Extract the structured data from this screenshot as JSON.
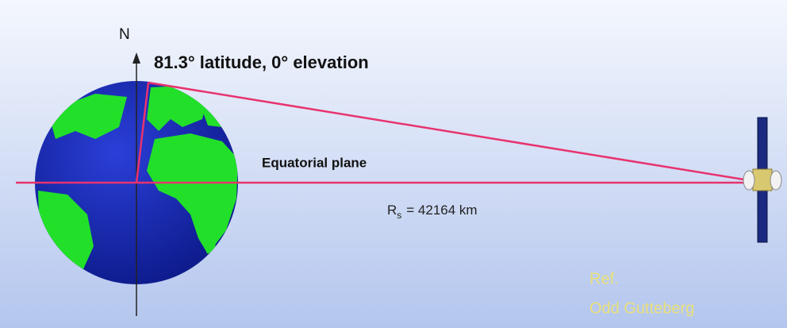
{
  "north_label": "N",
  "elevation_label": "81.3° latitude, 0° elevation",
  "plane_label": "Equatorial plane",
  "radius_label": {
    "symbol": "R",
    "subscript": "s",
    "value": "= 42164 km"
  },
  "reference": {
    "line1": "Ref.",
    "line2": "Odd Gutteberg"
  }
}
